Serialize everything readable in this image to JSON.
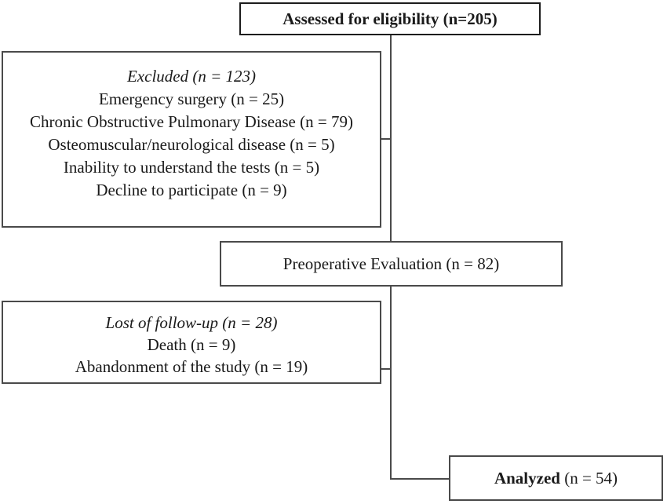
{
  "diagram": {
    "type": "study-flow-diagram",
    "colors": {
      "background": "#ffffff",
      "box_border": "#4a4a4a",
      "emphasis_border": "#1c1c1c",
      "text": "#1a1a1a",
      "connector": "#4a4a4a"
    },
    "boxes": {
      "assessed": {
        "title": "Assessed for eligibility (n=205)"
      },
      "excluded": {
        "title": "Excluded (n = 123)",
        "items": [
          "Emergency surgery (n = 25)",
          "Chronic Obstructive Pulmonary Disease (n = 79)",
          "Osteomuscular/neurological disease (n = 5)",
          "Inability to understand the tests (n = 5)",
          "Decline to participate (n = 9)"
        ]
      },
      "preoperative": {
        "title": "Preoperative Evaluation (n = 82)"
      },
      "lost": {
        "title": "Lost of follow-up (n = 28)",
        "items": [
          "Death (n = 9)",
          "Abandonment of the study (n = 19)"
        ]
      },
      "analyzed": {
        "title_bold": "Analyzed",
        "title_rest": " (n = 54)"
      }
    }
  }
}
